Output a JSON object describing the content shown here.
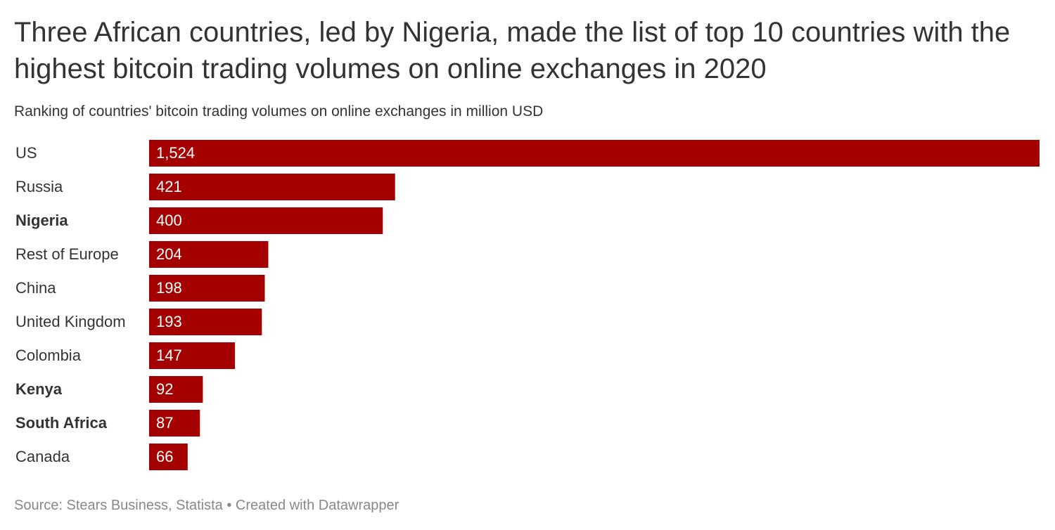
{
  "chart_data": {
    "type": "bar",
    "orientation": "horizontal",
    "title": "Three African countries, led by Nigeria, made the list of top 10 countries with the highest bitcoin trading volumes on online exchanges in 2020",
    "subtitle": "Ranking of countries' bitcoin trading volumes on online exchanges in million USD",
    "categories": [
      "US",
      "Russia",
      "Nigeria",
      "Rest of Europe",
      "China",
      "United Kingdom",
      "Colombia",
      "Kenya",
      "South Africa",
      "Canada"
    ],
    "values": [
      1524,
      421,
      400,
      204,
      198,
      193,
      147,
      92,
      87,
      66
    ],
    "value_labels": [
      "1,524",
      "421",
      "400",
      "204",
      "198",
      "193",
      "147",
      "92",
      "87",
      "66"
    ],
    "bold_categories": [
      2,
      7,
      8
    ],
    "color": "#a50000",
    "source": "Source: Stears Business, Statista • Created with Datawrapper"
  }
}
